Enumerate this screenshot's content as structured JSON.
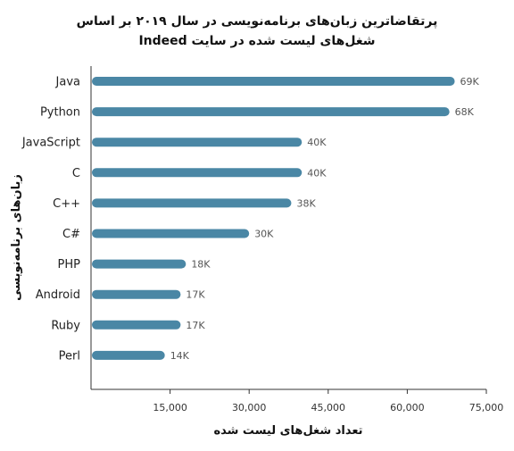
{
  "chart_data": {
    "type": "bar",
    "orientation": "horizontal",
    "title_line1": "پرتقاضاترین زبان‌های برنامه‌نویسی در سال ۲۰۱۹ بر اساس",
    "title_line2": "شغل‌های لیست شده در سایت Indeed",
    "xlabel": "تعداد شغل‌های لیست شده",
    "ylabel": "زبان‌های برنامه‌نویسی",
    "categories": [
      "Java",
      "Python",
      "JavaScript",
      "C",
      "C++",
      "C#",
      "PHP",
      "Android",
      "Ruby",
      "Perl"
    ],
    "values": [
      69000,
      68000,
      40000,
      40000,
      38000,
      30000,
      18000,
      17000,
      17000,
      14000
    ],
    "data_labels": [
      "69K",
      "68K",
      "40K",
      "40K",
      "38K",
      "30K",
      "18K",
      "17K",
      "17K",
      "14K"
    ],
    "xlim": [
      0,
      75000
    ],
    "xticks": [
      15000,
      30000,
      45000,
      60000,
      75000
    ],
    "xtick_labels": [
      "15,000",
      "30,000",
      "45,000",
      "60,000",
      "75,000"
    ],
    "grid": false,
    "bar_color": "#4a87a5"
  }
}
